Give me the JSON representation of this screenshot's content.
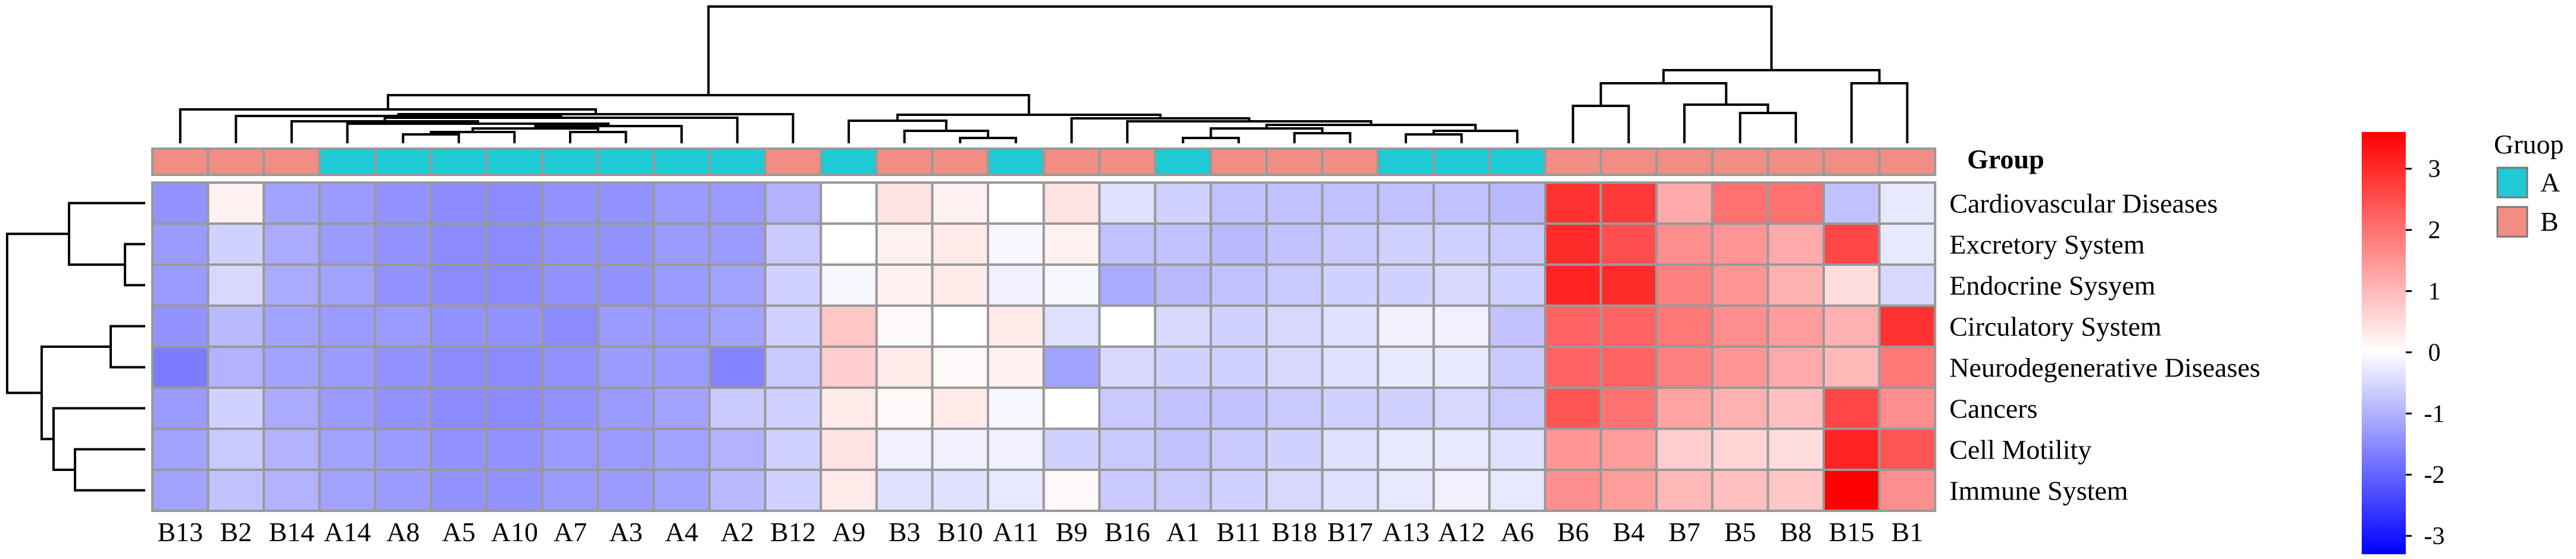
{
  "chart_data": {
    "type": "heatmap",
    "columns": [
      "B13",
      "B2",
      "B14",
      "A14",
      "A8",
      "A5",
      "A10",
      "A7",
      "A3",
      "A4",
      "A2",
      "B12",
      "A9",
      "B3",
      "B10",
      "A11",
      "B9",
      "B16",
      "A1",
      "B11",
      "B18",
      "B17",
      "A13",
      "A12",
      "A6",
      "B6",
      "B4",
      "B7",
      "B5",
      "B8",
      "B15",
      "B1"
    ],
    "rows": [
      "Cardiovascular Diseases",
      "Excretory System",
      "Endocrine Sysyem",
      "Circulatory System",
      "Neurodegenerative Diseases",
      "Cancers",
      "Cell Motility",
      "Immune System"
    ],
    "groups": [
      "B",
      "B",
      "B",
      "A",
      "A",
      "A",
      "A",
      "A",
      "A",
      "A",
      "A",
      "B",
      "A",
      "B",
      "B",
      "A",
      "B",
      "B",
      "A",
      "B",
      "B",
      "B",
      "A",
      "A",
      "A",
      "B",
      "B",
      "B",
      "B",
      "B",
      "B",
      "B"
    ],
    "values": [
      [
        -1.4,
        0.2,
        -1.2,
        -1.3,
        -1.4,
        -1.5,
        -1.5,
        -1.4,
        -1.4,
        -1.3,
        -1.3,
        -1.0,
        0.0,
        0.4,
        0.2,
        0.0,
        0.4,
        -0.4,
        -0.6,
        -0.8,
        -0.8,
        -0.8,
        -0.8,
        -0.8,
        -0.9,
        2.9,
        2.8,
        1.2,
        2.0,
        2.0,
        -0.8,
        -0.3
      ],
      [
        -1.3,
        -0.6,
        -1.1,
        -1.3,
        -1.4,
        -1.5,
        -1.5,
        -1.4,
        -1.4,
        -1.3,
        -1.3,
        -0.7,
        0.0,
        0.2,
        0.3,
        -0.1,
        0.2,
        -0.8,
        -0.8,
        -0.9,
        -0.8,
        -0.7,
        -0.6,
        -0.6,
        -0.7,
        3.0,
        2.5,
        1.6,
        1.5,
        1.2,
        2.6,
        -0.3
      ],
      [
        -1.3,
        -0.5,
        -1.1,
        -1.2,
        -1.4,
        -1.5,
        -1.5,
        -1.4,
        -1.4,
        -1.3,
        -1.2,
        -0.6,
        -0.1,
        0.2,
        0.3,
        -0.2,
        -0.1,
        -1.1,
        -0.9,
        -0.8,
        -0.7,
        -0.6,
        -0.6,
        -0.5,
        -0.6,
        3.1,
        3.0,
        1.8,
        1.5,
        1.1,
        0.5,
        -0.5
      ],
      [
        -1.4,
        -0.9,
        -1.2,
        -1.3,
        -1.3,
        -1.4,
        -1.4,
        -1.5,
        -1.3,
        -1.3,
        -1.2,
        -0.6,
        0.8,
        0.1,
        0.0,
        0.3,
        -0.4,
        0.0,
        -0.5,
        -0.6,
        -0.5,
        -0.4,
        -0.2,
        -0.2,
        -0.8,
        2.2,
        2.2,
        1.9,
        1.6,
        1.4,
        1.1,
        2.9
      ],
      [
        -1.7,
        -1.0,
        -1.2,
        -1.3,
        -1.4,
        -1.5,
        -1.5,
        -1.4,
        -1.3,
        -1.3,
        -1.6,
        -0.7,
        0.7,
        0.3,
        0.1,
        0.2,
        -1.2,
        -0.5,
        -0.6,
        -0.6,
        -0.5,
        -0.4,
        -0.3,
        -0.3,
        -0.7,
        2.2,
        2.2,
        1.8,
        1.5,
        1.2,
        1.0,
        1.9
      ],
      [
        -1.3,
        -0.6,
        -1.1,
        -1.3,
        -1.4,
        -1.5,
        -1.5,
        -1.4,
        -1.3,
        -1.2,
        -0.7,
        -0.6,
        0.3,
        0.1,
        0.3,
        -0.1,
        0.0,
        -0.7,
        -0.8,
        -0.8,
        -0.7,
        -0.6,
        -0.6,
        -0.5,
        -0.7,
        2.4,
        2.0,
        1.3,
        1.1,
        0.9,
        2.6,
        1.6
      ],
      [
        -1.2,
        -0.7,
        -1.0,
        -1.2,
        -1.3,
        -1.4,
        -1.4,
        -1.3,
        -1.3,
        -1.2,
        -1.0,
        -0.6,
        0.4,
        -0.2,
        -0.2,
        -0.2,
        -0.6,
        -0.7,
        -0.8,
        -0.7,
        -0.6,
        -0.4,
        -0.3,
        -0.3,
        -0.4,
        1.5,
        1.4,
        0.7,
        0.6,
        0.5,
        3.1,
        2.4
      ],
      [
        -1.2,
        -0.8,
        -1.0,
        -1.2,
        -1.3,
        -1.4,
        -1.4,
        -1.3,
        -1.3,
        -1.2,
        -0.9,
        -0.6,
        0.3,
        -0.4,
        -0.4,
        -0.3,
        0.1,
        -0.7,
        -0.7,
        -0.6,
        -0.5,
        -0.4,
        -0.3,
        -0.2,
        -0.3,
        1.6,
        1.4,
        1.0,
        0.9,
        0.8,
        3.6,
        1.6
      ]
    ],
    "color_scale": {
      "low": "#0000ff",
      "mid": "#ffffff",
      "high": "#ff0000",
      "range": [
        -3.3,
        3.6
      ]
    },
    "colorbar_ticks": [
      3,
      2,
      1,
      0,
      -1,
      -2,
      -3
    ],
    "group_label": "Group",
    "legend": {
      "title": "Gruop",
      "items": [
        {
          "label": "A",
          "color": "#1ecad3"
        },
        {
          "label": "B",
          "color": "#f08e83"
        }
      ]
    },
    "column_dendrogram": true,
    "row_dendrogram": true,
    "grid": true,
    "legend_position": "right"
  }
}
